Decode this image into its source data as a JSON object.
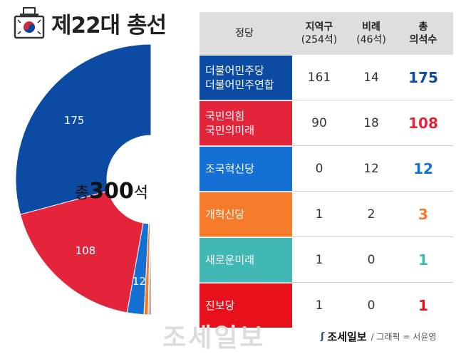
{
  "title": "제22대 총선",
  "center_label": {
    "prefix": "총",
    "number": "300",
    "suffix": "석"
  },
  "table": {
    "headers": {
      "party": "정당",
      "district": "지역구",
      "district_sub": "(254석)",
      "proportional": "비례",
      "proportional_sub": "(46석)",
      "total": "총",
      "total_sub": "의석수"
    },
    "rows": [
      {
        "party": "더불어민주당",
        "party2": "더불어민주연합",
        "district": "161",
        "proportional": "14",
        "total": "175",
        "color": "#0c4ba3",
        "total_color": "#0c4ba3"
      },
      {
        "party": "국민의힘",
        "party2": "국민의미래",
        "district": "90",
        "proportional": "18",
        "total": "108",
        "color": "#e3243b",
        "total_color": "#e3243b"
      },
      {
        "party": "조국혁신당",
        "party2": "",
        "district": "0",
        "proportional": "12",
        "total": "12",
        "color": "#1470d3",
        "total_color": "#1470d3"
      },
      {
        "party": "개혁신당",
        "party2": "",
        "district": "1",
        "proportional": "2",
        "total": "3",
        "color": "#f57a29",
        "total_color": "#f57a29"
      },
      {
        "party": "새로운미래",
        "party2": "",
        "district": "1",
        "proportional": "0",
        "total": "1",
        "color": "#41b8b3",
        "total_color": "#41b8b3"
      },
      {
        "party": "진보당",
        "party2": "",
        "district": "1",
        "proportional": "0",
        "total": "1",
        "color": "#e8101a",
        "total_color": "#e8101a"
      }
    ]
  },
  "chart_data": {
    "type": "pie",
    "subtype": "half-donut",
    "total_seats": 300,
    "slices": [
      {
        "label": "더불어민주당·더불어민주연합",
        "value": 175,
        "color": "#0c4ba3",
        "data_label": "175"
      },
      {
        "label": "국민의힘·국민의미래",
        "value": 108,
        "color": "#e3243b",
        "data_label": "108"
      },
      {
        "label": "조국혁신당",
        "value": 12,
        "color": "#1470d3",
        "data_label": "12"
      },
      {
        "label": "개혁신당",
        "value": 3,
        "color": "#f57a29",
        "data_label": ""
      },
      {
        "label": "새로운미래",
        "value": 1,
        "color": "#41b8b3",
        "data_label": ""
      },
      {
        "label": "진보당",
        "value": 1,
        "color": "#e8101a",
        "data_label": ""
      }
    ]
  },
  "footer": {
    "logo": "조세일보",
    "credit": "/ 그래픽 = 서윤영"
  },
  "watermark": "조세일보"
}
